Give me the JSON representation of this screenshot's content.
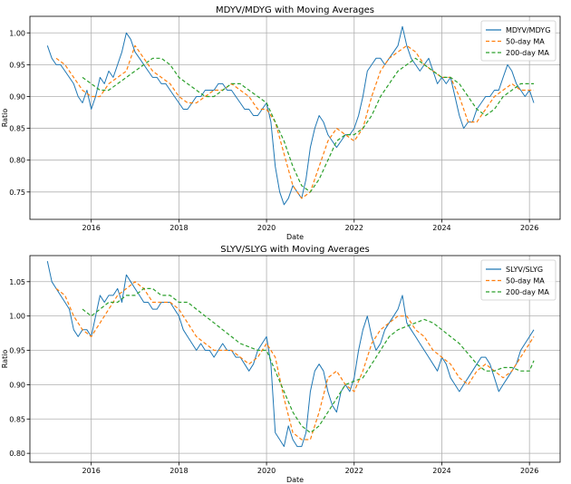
{
  "chart_data": [
    {
      "type": "line",
      "title": "MDYV/MDYG with Moving Averages",
      "xlabel": "Date",
      "ylabel": "Ratio",
      "xlim": [
        2014.6,
        2026.7
      ],
      "ylim": [
        0.707,
        1.026
      ],
      "xticks": [
        2016,
        2018,
        2020,
        2022,
        2024,
        2026
      ],
      "xtick_labels": [
        "2016",
        "2018",
        "2020",
        "2022",
        "2024",
        "2026"
      ],
      "yticks": [
        0.75,
        0.8,
        0.85,
        0.9,
        0.95,
        1.0
      ],
      "ytick_labels": [
        "0.75",
        "0.80",
        "0.85",
        "0.90",
        "0.95",
        "1.00"
      ],
      "grid": true,
      "legend_position": "top-right",
      "series": [
        {
          "name": "MDYV/MDYG",
          "color": "#1f77b4",
          "style": "solid",
          "x": [
            2015.0,
            2015.1,
            2015.2,
            2015.3,
            2015.4,
            2015.5,
            2015.6,
            2015.7,
            2015.8,
            2015.9,
            2016.0,
            2016.1,
            2016.2,
            2016.3,
            2016.4,
            2016.5,
            2016.6,
            2016.7,
            2016.8,
            2016.9,
            2017.0,
            2017.1,
            2017.2,
            2017.3,
            2017.4,
            2017.5,
            2017.6,
            2017.7,
            2017.8,
            2017.9,
            2018.0,
            2018.1,
            2018.2,
            2018.3,
            2018.4,
            2018.5,
            2018.6,
            2018.7,
            2018.8,
            2018.9,
            2019.0,
            2019.1,
            2019.2,
            2019.3,
            2019.4,
            2019.5,
            2019.6,
            2019.7,
            2019.8,
            2019.9,
            2020.0,
            2020.1,
            2020.2,
            2020.3,
            2020.4,
            2020.5,
            2020.6,
            2020.7,
            2020.8,
            2020.9,
            2021.0,
            2021.1,
            2021.2,
            2021.3,
            2021.4,
            2021.5,
            2021.6,
            2021.7,
            2021.8,
            2021.9,
            2022.0,
            2022.1,
            2022.2,
            2022.3,
            2022.4,
            2022.5,
            2022.6,
            2022.7,
            2022.8,
            2022.9,
            2023.0,
            2023.1,
            2023.2,
            2023.3,
            2023.4,
            2023.5,
            2023.6,
            2023.7,
            2023.8,
            2023.9,
            2024.0,
            2024.1,
            2024.2,
            2024.3,
            2024.4,
            2024.5,
            2024.6,
            2024.7,
            2024.8,
            2024.9,
            2025.0,
            2025.1,
            2025.2,
            2025.3,
            2025.4,
            2025.5,
            2025.6,
            2025.7,
            2025.8,
            2025.9,
            2026.0,
            2026.1
          ],
          "y": [
            0.98,
            0.96,
            0.95,
            0.95,
            0.94,
            0.93,
            0.92,
            0.9,
            0.89,
            0.91,
            0.88,
            0.9,
            0.93,
            0.92,
            0.94,
            0.93,
            0.95,
            0.97,
            1.0,
            0.99,
            0.97,
            0.96,
            0.95,
            0.94,
            0.93,
            0.93,
            0.92,
            0.92,
            0.91,
            0.9,
            0.89,
            0.88,
            0.88,
            0.89,
            0.9,
            0.9,
            0.91,
            0.91,
            0.91,
            0.92,
            0.92,
            0.91,
            0.91,
            0.9,
            0.89,
            0.88,
            0.88,
            0.87,
            0.87,
            0.88,
            0.89,
            0.86,
            0.79,
            0.75,
            0.73,
            0.74,
            0.76,
            0.75,
            0.74,
            0.77,
            0.82,
            0.85,
            0.87,
            0.86,
            0.84,
            0.83,
            0.82,
            0.83,
            0.84,
            0.84,
            0.85,
            0.87,
            0.9,
            0.94,
            0.95,
            0.96,
            0.96,
            0.95,
            0.96,
            0.97,
            0.98,
            1.01,
            0.98,
            0.96,
            0.95,
            0.94,
            0.95,
            0.96,
            0.94,
            0.92,
            0.93,
            0.92,
            0.93,
            0.9,
            0.87,
            0.85,
            0.86,
            0.86,
            0.88,
            0.89,
            0.9,
            0.9,
            0.91,
            0.91,
            0.93,
            0.95,
            0.94,
            0.92,
            0.91,
            0.9,
            0.91,
            0.89
          ]
        },
        {
          "name": "50-day MA",
          "color": "#ff7f0e",
          "style": "dashed",
          "x": [
            2015.2,
            2015.4,
            2015.6,
            2015.8,
            2016.0,
            2016.2,
            2016.4,
            2016.6,
            2016.8,
            2017.0,
            2017.2,
            2017.4,
            2017.6,
            2017.8,
            2018.0,
            2018.2,
            2018.4,
            2018.6,
            2018.8,
            2019.0,
            2019.2,
            2019.4,
            2019.6,
            2019.8,
            2020.0,
            2020.2,
            2020.4,
            2020.6,
            2020.8,
            2021.0,
            2021.2,
            2021.4,
            2021.6,
            2021.8,
            2022.0,
            2022.2,
            2022.4,
            2022.6,
            2022.8,
            2023.0,
            2023.2,
            2023.4,
            2023.6,
            2023.8,
            2024.0,
            2024.2,
            2024.4,
            2024.6,
            2024.8,
            2025.0,
            2025.2,
            2025.4,
            2025.6,
            2025.8,
            2026.0,
            2026.1
          ],
          "y": [
            0.96,
            0.95,
            0.93,
            0.91,
            0.9,
            0.9,
            0.92,
            0.93,
            0.94,
            0.98,
            0.96,
            0.94,
            0.93,
            0.92,
            0.9,
            0.89,
            0.89,
            0.9,
            0.91,
            0.91,
            0.92,
            0.91,
            0.9,
            0.88,
            0.88,
            0.86,
            0.81,
            0.76,
            0.74,
            0.75,
            0.79,
            0.83,
            0.85,
            0.84,
            0.83,
            0.85,
            0.9,
            0.94,
            0.96,
            0.97,
            0.98,
            0.97,
            0.95,
            0.94,
            0.93,
            0.93,
            0.9,
            0.86,
            0.86,
            0.88,
            0.9,
            0.91,
            0.92,
            0.91,
            0.91,
            0.91
          ]
        },
        {
          "name": "200-day MA",
          "color": "#2ca02c",
          "style": "dashed",
          "x": [
            2015.8,
            2016.0,
            2016.2,
            2016.4,
            2016.6,
            2016.8,
            2017.0,
            2017.2,
            2017.4,
            2017.6,
            2017.8,
            2018.0,
            2018.2,
            2018.4,
            2018.6,
            2018.8,
            2019.0,
            2019.2,
            2019.4,
            2019.6,
            2019.8,
            2020.0,
            2020.2,
            2020.4,
            2020.6,
            2020.8,
            2021.0,
            2021.2,
            2021.4,
            2021.6,
            2021.8,
            2022.0,
            2022.2,
            2022.4,
            2022.6,
            2022.8,
            2023.0,
            2023.2,
            2023.4,
            2023.6,
            2023.8,
            2024.0,
            2024.2,
            2024.4,
            2024.6,
            2024.8,
            2025.0,
            2025.2,
            2025.4,
            2025.6,
            2025.8,
            2026.0,
            2026.1
          ],
          "y": [
            0.93,
            0.92,
            0.91,
            0.91,
            0.92,
            0.93,
            0.94,
            0.95,
            0.96,
            0.96,
            0.95,
            0.93,
            0.92,
            0.91,
            0.9,
            0.9,
            0.91,
            0.92,
            0.92,
            0.91,
            0.9,
            0.89,
            0.86,
            0.83,
            0.79,
            0.76,
            0.75,
            0.77,
            0.8,
            0.83,
            0.84,
            0.84,
            0.85,
            0.87,
            0.9,
            0.92,
            0.94,
            0.95,
            0.96,
            0.95,
            0.94,
            0.93,
            0.93,
            0.92,
            0.9,
            0.88,
            0.87,
            0.88,
            0.9,
            0.91,
            0.92,
            0.92,
            0.92
          ]
        }
      ]
    },
    {
      "type": "line",
      "title": "SLYV/SLYG with Moving Averages",
      "xlabel": "Date",
      "ylabel": "Ratio",
      "xlim": [
        2014.6,
        2026.7
      ],
      "ylim": [
        0.787,
        1.088
      ],
      "xticks": [
        2016,
        2018,
        2020,
        2022,
        2024,
        2026
      ],
      "xtick_labels": [
        "2016",
        "2018",
        "2020",
        "2022",
        "2024",
        "2026"
      ],
      "yticks": [
        0.8,
        0.85,
        0.9,
        0.95,
        1.0,
        1.05
      ],
      "ytick_labels": [
        "0.80",
        "0.85",
        "0.90",
        "0.95",
        "1.00",
        "1.05"
      ],
      "grid": true,
      "legend_position": "top-right",
      "series": [
        {
          "name": "SLYV/SLYG",
          "color": "#1f77b4",
          "style": "solid",
          "x": [
            2015.0,
            2015.1,
            2015.2,
            2015.3,
            2015.4,
            2015.5,
            2015.6,
            2015.7,
            2015.8,
            2015.9,
            2016.0,
            2016.1,
            2016.2,
            2016.3,
            2016.4,
            2016.5,
            2016.6,
            2016.7,
            2016.8,
            2016.9,
            2017.0,
            2017.1,
            2017.2,
            2017.3,
            2017.4,
            2017.5,
            2017.6,
            2017.7,
            2017.8,
            2017.9,
            2018.0,
            2018.1,
            2018.2,
            2018.3,
            2018.4,
            2018.5,
            2018.6,
            2018.7,
            2018.8,
            2018.9,
            2019.0,
            2019.1,
            2019.2,
            2019.3,
            2019.4,
            2019.5,
            2019.6,
            2019.7,
            2019.8,
            2019.9,
            2020.0,
            2020.1,
            2020.2,
            2020.3,
            2020.4,
            2020.5,
            2020.6,
            2020.7,
            2020.8,
            2020.9,
            2021.0,
            2021.1,
            2021.2,
            2021.3,
            2021.4,
            2021.5,
            2021.6,
            2021.7,
            2021.8,
            2021.9,
            2022.0,
            2022.1,
            2022.2,
            2022.3,
            2022.4,
            2022.5,
            2022.6,
            2022.7,
            2022.8,
            2022.9,
            2023.0,
            2023.1,
            2023.2,
            2023.3,
            2023.4,
            2023.5,
            2023.6,
            2023.7,
            2023.8,
            2023.9,
            2024.0,
            2024.1,
            2024.2,
            2024.3,
            2024.4,
            2024.5,
            2024.6,
            2024.7,
            2024.8,
            2024.9,
            2025.0,
            2025.1,
            2025.2,
            2025.3,
            2025.4,
            2025.5,
            2025.6,
            2025.7,
            2025.8,
            2025.9,
            2026.0,
            2026.1
          ],
          "y": [
            1.08,
            1.05,
            1.04,
            1.03,
            1.02,
            1.01,
            0.98,
            0.97,
            0.98,
            0.98,
            0.97,
            1.0,
            1.03,
            1.02,
            1.03,
            1.03,
            1.04,
            1.02,
            1.06,
            1.05,
            1.04,
            1.03,
            1.02,
            1.02,
            1.01,
            1.01,
            1.02,
            1.02,
            1.02,
            1.01,
            1.0,
            0.98,
            0.97,
            0.96,
            0.95,
            0.96,
            0.95,
            0.95,
            0.94,
            0.95,
            0.96,
            0.95,
            0.95,
            0.94,
            0.94,
            0.93,
            0.92,
            0.93,
            0.95,
            0.96,
            0.97,
            0.93,
            0.83,
            0.82,
            0.81,
            0.84,
            0.82,
            0.81,
            0.81,
            0.83,
            0.89,
            0.92,
            0.93,
            0.92,
            0.89,
            0.87,
            0.86,
            0.89,
            0.9,
            0.89,
            0.91,
            0.95,
            0.98,
            1.0,
            0.97,
            0.95,
            0.96,
            0.98,
            0.99,
            1.0,
            1.01,
            1.03,
            0.99,
            0.98,
            0.97,
            0.96,
            0.95,
            0.94,
            0.93,
            0.92,
            0.94,
            0.93,
            0.91,
            0.9,
            0.89,
            0.9,
            0.91,
            0.92,
            0.93,
            0.94,
            0.94,
            0.93,
            0.91,
            0.89,
            0.9,
            0.91,
            0.92,
            0.93,
            0.95,
            0.96,
            0.97,
            0.98
          ]
        },
        {
          "name": "50-day MA",
          "color": "#ff7f0e",
          "style": "dashed",
          "x": [
            2015.2,
            2015.4,
            2015.6,
            2015.8,
            2016.0,
            2016.2,
            2016.4,
            2016.6,
            2016.8,
            2017.0,
            2017.2,
            2017.4,
            2017.6,
            2017.8,
            2018.0,
            2018.2,
            2018.4,
            2018.6,
            2018.8,
            2019.0,
            2019.2,
            2019.4,
            2019.6,
            2019.8,
            2020.0,
            2020.2,
            2020.4,
            2020.6,
            2020.8,
            2021.0,
            2021.2,
            2021.4,
            2021.6,
            2021.8,
            2022.0,
            2022.2,
            2022.4,
            2022.6,
            2022.8,
            2023.0,
            2023.2,
            2023.4,
            2023.6,
            2023.8,
            2024.0,
            2024.2,
            2024.4,
            2024.6,
            2024.8,
            2025.0,
            2025.2,
            2025.4,
            2025.6,
            2025.8,
            2026.0,
            2026.1
          ],
          "y": [
            1.04,
            1.03,
            1.0,
            0.98,
            0.97,
            0.99,
            1.01,
            1.03,
            1.04,
            1.05,
            1.04,
            1.02,
            1.02,
            1.02,
            1.01,
            0.99,
            0.97,
            0.96,
            0.95,
            0.95,
            0.95,
            0.94,
            0.93,
            0.94,
            0.96,
            0.94,
            0.88,
            0.83,
            0.82,
            0.82,
            0.86,
            0.91,
            0.92,
            0.9,
            0.89,
            0.92,
            0.96,
            0.98,
            0.99,
            1.0,
            1.0,
            0.98,
            0.97,
            0.95,
            0.94,
            0.93,
            0.91,
            0.9,
            0.92,
            0.93,
            0.92,
            0.91,
            0.92,
            0.94,
            0.96,
            0.97
          ]
        },
        {
          "name": "200-day MA",
          "color": "#2ca02c",
          "style": "dashed",
          "x": [
            2015.8,
            2016.0,
            2016.2,
            2016.4,
            2016.6,
            2016.8,
            2017.0,
            2017.2,
            2017.4,
            2017.6,
            2017.8,
            2018.0,
            2018.2,
            2018.4,
            2018.6,
            2018.8,
            2019.0,
            2019.2,
            2019.4,
            2019.6,
            2019.8,
            2020.0,
            2020.2,
            2020.4,
            2020.6,
            2020.8,
            2021.0,
            2021.2,
            2021.4,
            2021.6,
            2021.8,
            2022.0,
            2022.2,
            2022.4,
            2022.6,
            2022.8,
            2023.0,
            2023.2,
            2023.4,
            2023.6,
            2023.8,
            2024.0,
            2024.2,
            2024.4,
            2024.6,
            2024.8,
            2025.0,
            2025.2,
            2025.4,
            2025.6,
            2025.8,
            2026.0,
            2026.1
          ],
          "y": [
            1.01,
            1.0,
            1.01,
            1.02,
            1.02,
            1.03,
            1.03,
            1.04,
            1.04,
            1.03,
            1.03,
            1.02,
            1.02,
            1.01,
            1.0,
            0.99,
            0.98,
            0.97,
            0.96,
            0.955,
            0.95,
            0.95,
            0.92,
            0.89,
            0.86,
            0.84,
            0.83,
            0.84,
            0.86,
            0.88,
            0.9,
            0.905,
            0.91,
            0.93,
            0.95,
            0.97,
            0.98,
            0.985,
            0.99,
            0.995,
            0.99,
            0.98,
            0.97,
            0.96,
            0.945,
            0.93,
            0.92,
            0.92,
            0.925,
            0.925,
            0.92,
            0.92,
            0.935
          ]
        }
      ]
    }
  ]
}
